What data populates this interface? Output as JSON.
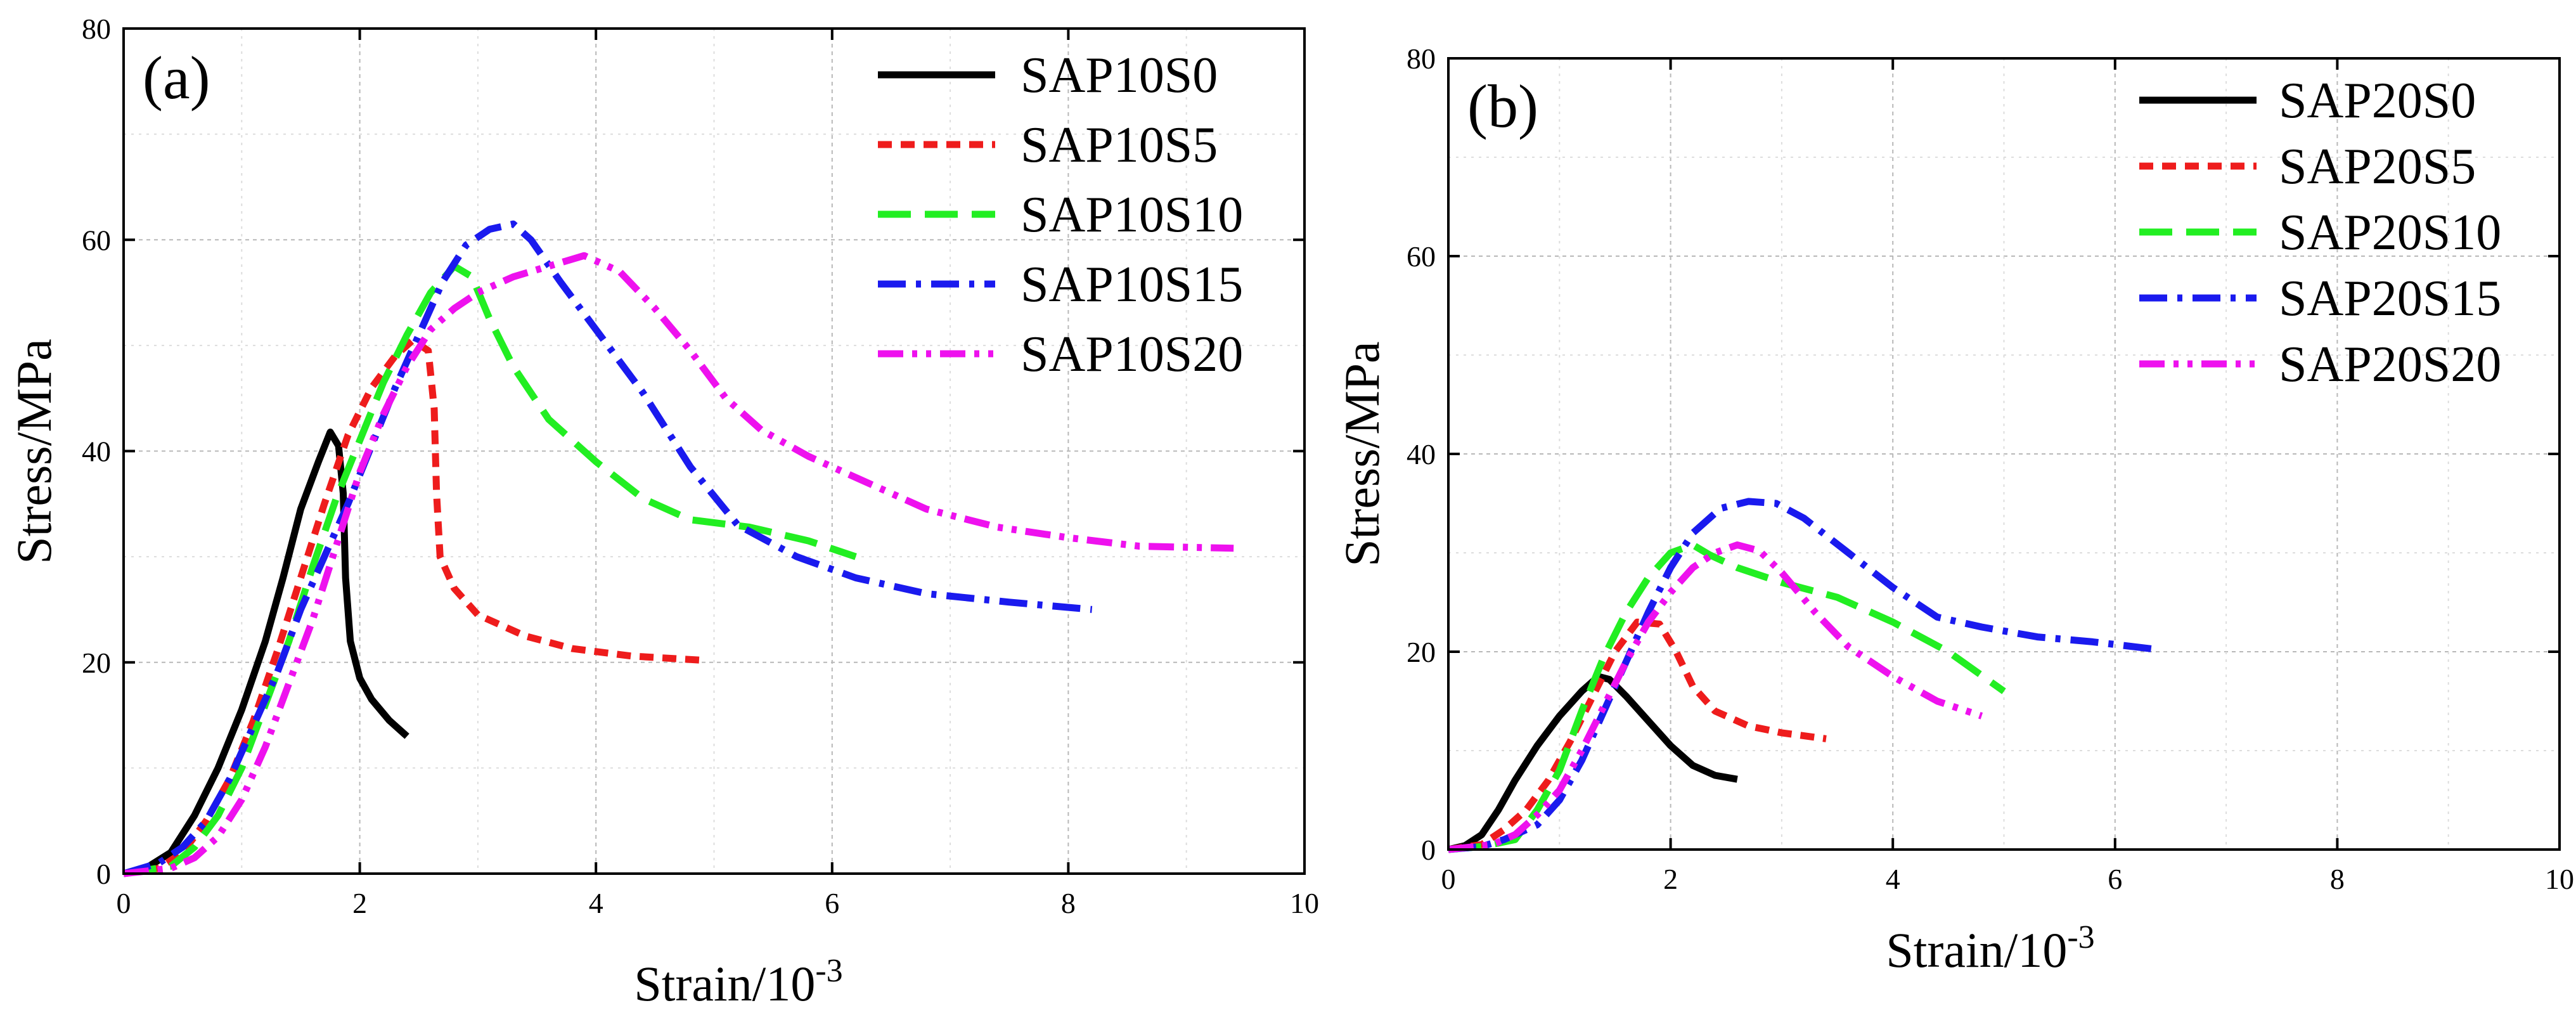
{
  "chart_data": [
    {
      "type": "line",
      "panel_label": "(a)",
      "xlabel_text": "Strain/10",
      "xlabel_sup": "-3",
      "ylabel": "Stress/MPa",
      "xlim": [
        0,
        10
      ],
      "ylim": [
        0,
        80
      ],
      "xticks": [
        "0",
        "2",
        "4",
        "6",
        "8",
        "10"
      ],
      "yticks": [
        "0",
        "20",
        "40",
        "60",
        "80"
      ],
      "grid": true,
      "legend_position": "top-right",
      "series": [
        {
          "name": "SAP10S0",
          "color": "#000000",
          "dash": "solid",
          "points": [
            [
              0,
              0
            ],
            [
              0.2,
              0.6
            ],
            [
              0.4,
              2
            ],
            [
              0.6,
              5.5
            ],
            [
              0.8,
              10
            ],
            [
              1.0,
              15.5
            ],
            [
              1.2,
              22
            ],
            [
              1.35,
              28
            ],
            [
              1.5,
              34.5
            ],
            [
              1.65,
              39
            ],
            [
              1.75,
              41.8
            ],
            [
              1.82,
              40.5
            ],
            [
              1.86,
              36
            ],
            [
              1.88,
              28
            ],
            [
              1.92,
              22
            ],
            [
              2.0,
              18.5
            ],
            [
              2.1,
              16.5
            ],
            [
              2.25,
              14.5
            ],
            [
              2.4,
              13
            ]
          ]
        },
        {
          "name": "SAP10S5",
          "color": "#ee1c1c",
          "dash": "dashed",
          "points": [
            [
              0,
              0
            ],
            [
              0.3,
              0.5
            ],
            [
              0.5,
              2
            ],
            [
              0.7,
              5
            ],
            [
              0.9,
              9
            ],
            [
              1.1,
              14.5
            ],
            [
              1.3,
              21
            ],
            [
              1.5,
              28
            ],
            [
              1.7,
              35
            ],
            [
              1.9,
              41.5
            ],
            [
              2.1,
              46
            ],
            [
              2.3,
              49
            ],
            [
              2.45,
              50.5
            ],
            [
              2.58,
              49.5
            ],
            [
              2.63,
              44
            ],
            [
              2.65,
              36
            ],
            [
              2.68,
              30
            ],
            [
              2.8,
              27
            ],
            [
              3.0,
              24.5
            ],
            [
              3.4,
              22.5
            ],
            [
              3.8,
              21.3
            ],
            [
              4.3,
              20.6
            ],
            [
              4.9,
              20.2
            ]
          ]
        },
        {
          "name": "SAP10S10",
          "color": "#22ee22",
          "dash": "longdash",
          "points": [
            [
              0,
              0
            ],
            [
              0.4,
              0.7
            ],
            [
              0.6,
              2.5
            ],
            [
              0.8,
              5.5
            ],
            [
              1.0,
              10
            ],
            [
              1.2,
              16
            ],
            [
              1.4,
              22
            ],
            [
              1.6,
              29
            ],
            [
              1.8,
              35.5
            ],
            [
              2.0,
              41
            ],
            [
              2.2,
              46.5
            ],
            [
              2.4,
              51
            ],
            [
              2.6,
              55
            ],
            [
              2.8,
              57.5
            ],
            [
              2.95,
              56.5
            ],
            [
              3.1,
              52.5
            ],
            [
              3.3,
              48
            ],
            [
              3.6,
              43
            ],
            [
              4.0,
              39
            ],
            [
              4.4,
              35.5
            ],
            [
              4.8,
              33.5
            ],
            [
              5.3,
              32.8
            ],
            [
              5.8,
              31.5
            ],
            [
              6.2,
              30
            ]
          ]
        },
        {
          "name": "SAP10S15",
          "color": "#1a1aee",
          "dash": "dashdot",
          "points": [
            [
              0,
              0
            ],
            [
              0.3,
              1
            ],
            [
              0.5,
              2.5
            ],
            [
              0.7,
              5
            ],
            [
              0.9,
              9
            ],
            [
              1.1,
              14
            ],
            [
              1.3,
              19
            ],
            [
              1.5,
              25
            ],
            [
              1.7,
              30
            ],
            [
              1.9,
              35
            ],
            [
              2.1,
              40.5
            ],
            [
              2.3,
              46
            ],
            [
              2.5,
              51
            ],
            [
              2.7,
              56
            ],
            [
              2.9,
              59.5
            ],
            [
              3.1,
              61
            ],
            [
              3.3,
              61.5
            ],
            [
              3.45,
              60
            ],
            [
              3.7,
              56
            ],
            [
              4.0,
              51.5
            ],
            [
              4.4,
              45.5
            ],
            [
              4.8,
              38.5
            ],
            [
              5.2,
              33
            ],
            [
              5.7,
              30
            ],
            [
              6.2,
              28
            ],
            [
              6.8,
              26.5
            ],
            [
              7.5,
              25.7
            ],
            [
              8.2,
              25
            ]
          ]
        },
        {
          "name": "SAP10S20",
          "color": "#ee11ee",
          "dash": "dashdotdot",
          "points": [
            [
              0,
              0
            ],
            [
              0.4,
              0.5
            ],
            [
              0.6,
              1.5
            ],
            [
              0.8,
              3.5
            ],
            [
              1.0,
              7
            ],
            [
              1.2,
              12
            ],
            [
              1.4,
              18
            ],
            [
              1.6,
              24
            ],
            [
              1.8,
              31
            ],
            [
              2.0,
              38
            ],
            [
              2.2,
              43.5
            ],
            [
              2.4,
              48
            ],
            [
              2.6,
              51.5
            ],
            [
              2.8,
              53.5
            ],
            [
              3.0,
              55
            ],
            [
              3.3,
              56.5
            ],
            [
              3.6,
              57.5
            ],
            [
              3.9,
              58.5
            ],
            [
              4.2,
              57
            ],
            [
              4.5,
              53.5
            ],
            [
              4.8,
              49.5
            ],
            [
              5.1,
              45
            ],
            [
              5.4,
              42
            ],
            [
              5.8,
              39.5
            ],
            [
              6.3,
              37
            ],
            [
              6.8,
              34.5
            ],
            [
              7.4,
              32.8
            ],
            [
              8.0,
              31.8
            ],
            [
              8.6,
              31
            ],
            [
              9.4,
              30.8
            ]
          ]
        }
      ]
    },
    {
      "type": "line",
      "panel_label": "(b)",
      "xlabel_text": "Strain/10",
      "xlabel_sup": "-3",
      "ylabel": "Stress/MPa",
      "xlim": [
        0,
        10
      ],
      "ylim": [
        0,
        80
      ],
      "xticks": [
        "0",
        "2",
        "4",
        "6",
        "8",
        "10"
      ],
      "yticks": [
        "0",
        "20",
        "40",
        "60",
        "80"
      ],
      "grid": true,
      "legend_position": "top-right",
      "series": [
        {
          "name": "SAP20S0",
          "color": "#000000",
          "dash": "solid",
          "points": [
            [
              0,
              0
            ],
            [
              0.15,
              0.4
            ],
            [
              0.3,
              1.5
            ],
            [
              0.45,
              4
            ],
            [
              0.6,
              7
            ],
            [
              0.8,
              10.5
            ],
            [
              1.0,
              13.5
            ],
            [
              1.2,
              16
            ],
            [
              1.35,
              17.5
            ],
            [
              1.45,
              17.2
            ],
            [
              1.6,
              15.5
            ],
            [
              1.8,
              13
            ],
            [
              2.0,
              10.5
            ],
            [
              2.2,
              8.5
            ],
            [
              2.4,
              7.5
            ],
            [
              2.6,
              7.1
            ]
          ]
        },
        {
          "name": "SAP20S5",
          "color": "#ee1c1c",
          "dash": "dashed",
          "points": [
            [
              0,
              0
            ],
            [
              0.3,
              0.5
            ],
            [
              0.5,
              2
            ],
            [
              0.7,
              4
            ],
            [
              0.9,
              7
            ],
            [
              1.1,
              11
            ],
            [
              1.3,
              15.5
            ],
            [
              1.5,
              20
            ],
            [
              1.7,
              23
            ],
            [
              1.9,
              22.8
            ],
            [
              2.05,
              20
            ],
            [
              2.2,
              16.5
            ],
            [
              2.4,
              14
            ],
            [
              2.7,
              12.5
            ],
            [
              3.0,
              11.8
            ],
            [
              3.4,
              11.2
            ]
          ]
        },
        {
          "name": "SAP20S10",
          "color": "#22ee22",
          "dash": "longdash",
          "points": [
            [
              0,
              0
            ],
            [
              0.3,
              0.3
            ],
            [
              0.6,
              1
            ],
            [
              0.8,
              4
            ],
            [
              1.0,
              8
            ],
            [
              1.2,
              14
            ],
            [
              1.4,
              19.5
            ],
            [
              1.6,
              24
            ],
            [
              1.8,
              27.5
            ],
            [
              2.0,
              30
            ],
            [
              2.2,
              30.8
            ],
            [
              2.35,
              29.8
            ],
            [
              2.6,
              28.5
            ],
            [
              3.0,
              27
            ],
            [
              3.5,
              25.5
            ],
            [
              4.0,
              23
            ],
            [
              4.5,
              20
            ],
            [
              5.0,
              16
            ]
          ]
        },
        {
          "name": "SAP20S15",
          "color": "#1a1aee",
          "dash": "dashdot",
          "points": [
            [
              0,
              0
            ],
            [
              0.3,
              0.3
            ],
            [
              0.5,
              1
            ],
            [
              0.8,
              2.5
            ],
            [
              1.0,
              5
            ],
            [
              1.2,
              9
            ],
            [
              1.4,
              14
            ],
            [
              1.6,
              19
            ],
            [
              1.8,
              24
            ],
            [
              2.0,
              28.5
            ],
            [
              2.2,
              32
            ],
            [
              2.45,
              34.5
            ],
            [
              2.7,
              35.2
            ],
            [
              2.95,
              35
            ],
            [
              3.2,
              33.5
            ],
            [
              3.6,
              30
            ],
            [
              4.0,
              26.5
            ],
            [
              4.4,
              23.5
            ],
            [
              4.8,
              22.5
            ],
            [
              5.3,
              21.5
            ],
            [
              5.8,
              21
            ],
            [
              6.4,
              20.2
            ]
          ]
        },
        {
          "name": "SAP20S20",
          "color": "#ee11ee",
          "dash": "dashdotdot",
          "points": [
            [
              0,
              0
            ],
            [
              0.4,
              0.5
            ],
            [
              0.6,
              1.5
            ],
            [
              0.8,
              3.5
            ],
            [
              1.0,
              6
            ],
            [
              1.2,
              10
            ],
            [
              1.4,
              14.5
            ],
            [
              1.6,
              19
            ],
            [
              1.8,
              23
            ],
            [
              2.0,
              26
            ],
            [
              2.2,
              28.5
            ],
            [
              2.4,
              30
            ],
            [
              2.6,
              30.8
            ],
            [
              2.8,
              30.2
            ],
            [
              3.0,
              28
            ],
            [
              3.3,
              24
            ],
            [
              3.6,
              20.5
            ],
            [
              4.0,
              17.5
            ],
            [
              4.4,
              15
            ],
            [
              4.8,
              13.5
            ]
          ]
        }
      ]
    }
  ]
}
